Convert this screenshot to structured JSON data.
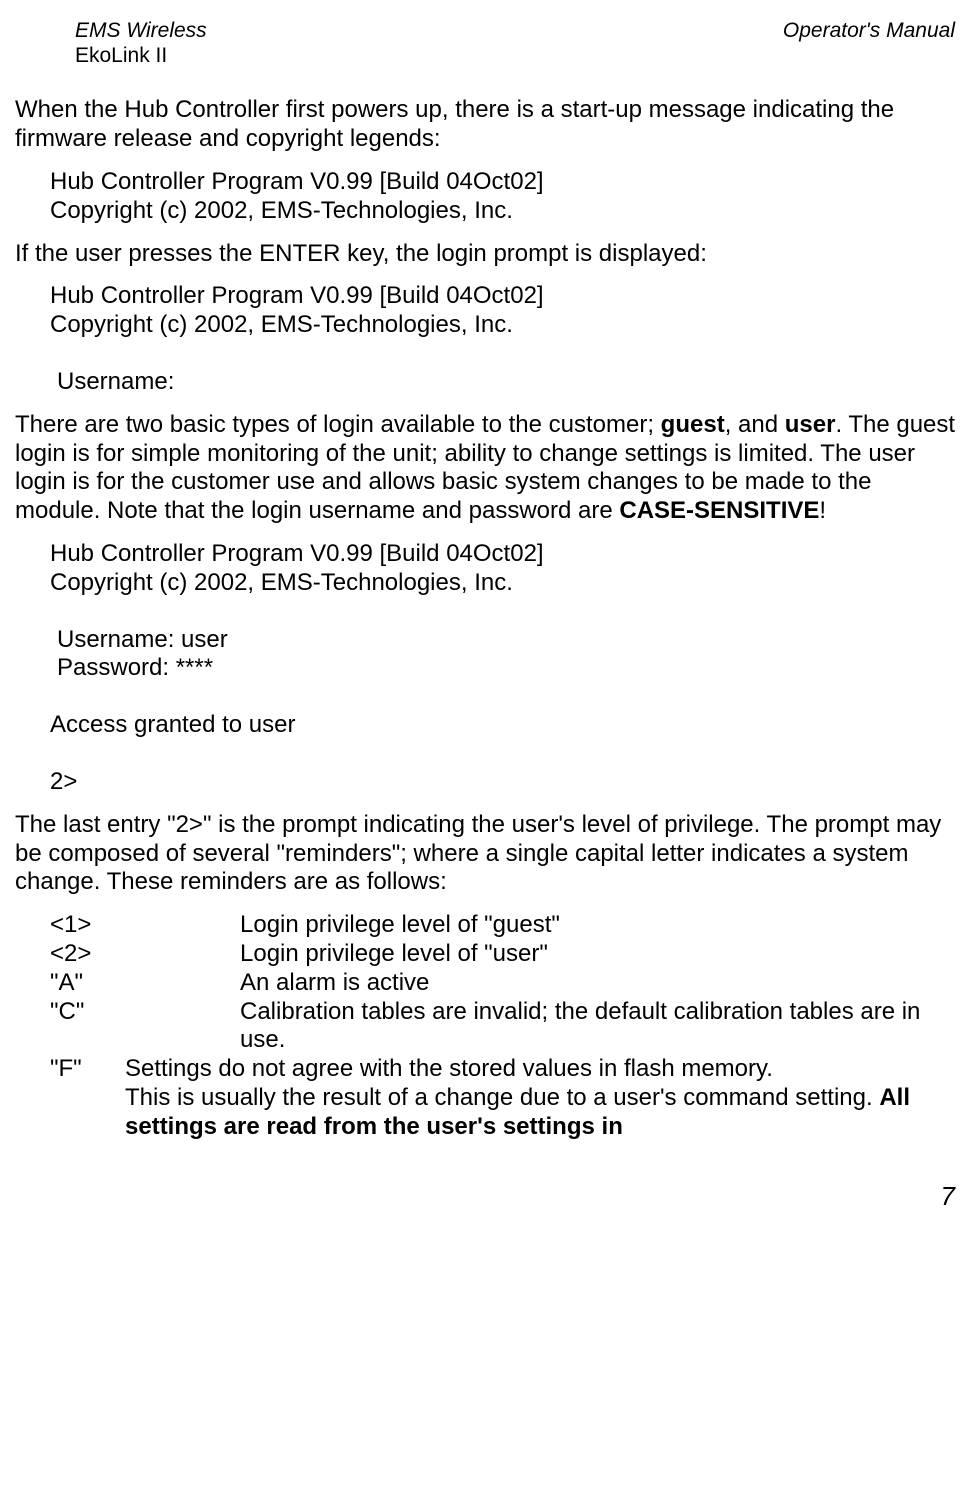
{
  "header": {
    "left_line1": "EMS Wireless",
    "left_line2": "EkoLink II",
    "right": "Operator's Manual"
  },
  "para1": "When the Hub Controller first powers up, there is a start-up message indicating the firmware release and copyright legends:",
  "block1": {
    "line1": "Hub Controller Program V0.99 [Build 04Oct02]",
    "line2": "Copyright (c) 2002, EMS-Technologies, Inc."
  },
  "para2": "If the user presses the ENTER key, the login prompt is displayed:",
  "block2": {
    "line1": "Hub Controller Program V0.99 [Build 04Oct02]",
    "line2": "Copyright (c) 2002, EMS-Technologies, Inc.",
    "line3": "Username:"
  },
  "para3": {
    "seg1": "There are two basic types of login available to the customer; ",
    "bold1": "guest",
    "seg2": ", and ",
    "bold2": "user",
    "seg3": ".  The guest login is for simple monitoring of the unit; ability to change settings is limited.  The user login is for the customer use and allows basic system changes to be made to the module.  Note that the login username and password are ",
    "bold3": "CASE-SENSITIVE",
    "seg4": "!"
  },
  "block3": {
    "line1": "Hub Controller Program V0.99 [Build 04Oct02]",
    "line2": "Copyright (c) 2002, EMS-Technologies, Inc.",
    "line3": "Username: user",
    "line4": "Password: ****",
    "line5": "Access granted to user",
    "line6": "2>"
  },
  "para4": "The last entry \"2>\" is the prompt indicating the user's level of privilege.  The prompt may be composed of several \"reminders\"; where a single capital letter indicates a system change.  These reminders are as follows:",
  "reminders": {
    "r1_code": "<1>",
    "r1_desc": "Login privilege level of \"guest\"",
    "r2_code": "<2>",
    "r2_desc": "Login privilege level of \"user\"",
    "r3_code": "\"A\"",
    "r3_desc": "An alarm is active",
    "r4_code": "\"C\"",
    "r4_desc": "Calibration tables are invalid; the default calibration tables are in use.",
    "r5_code": "\"F\"",
    "r5_desc1": "Settings do not agree with the stored values in flash memory.",
    "r5_desc2_seg1": "This is usually the result of a change due to a user's command setting.  ",
    "r5_desc2_bold": "All settings are read from the user's settings in"
  },
  "page_number": "7"
}
